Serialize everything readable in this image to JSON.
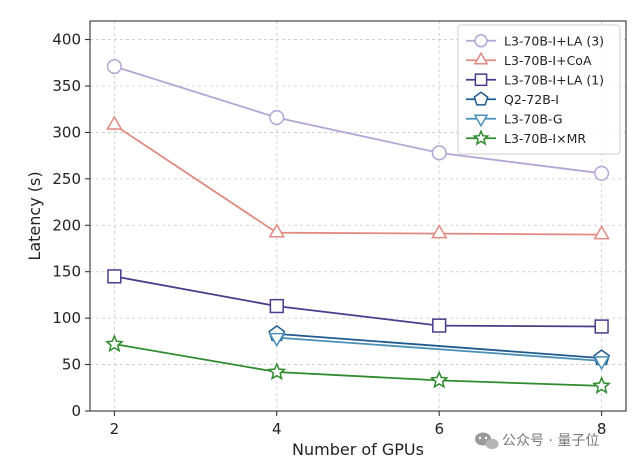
{
  "chart_data": {
    "type": "line",
    "xlabel": "Number of GPUs",
    "ylabel": "Latency (s)",
    "xlim": [
      1.7,
      8.3
    ],
    "ylim": [
      0,
      420
    ],
    "x_ticks": [
      2,
      4,
      6,
      8
    ],
    "y_ticks": [
      0,
      50,
      100,
      150,
      200,
      250,
      300,
      350,
      400
    ],
    "grid": true,
    "legend_position": "top-right",
    "series": [
      {
        "name": "L3-70B-I+LA (3)",
        "color": "#b3a6d4",
        "marker": "circle",
        "x": [
          2,
          4,
          6,
          8
        ],
        "values": [
          371,
          316,
          278,
          256
        ]
      },
      {
        "name": "L3-70B-I+CoA",
        "color": "#e08a82",
        "marker": "triangle-up",
        "x": [
          2,
          4,
          6,
          8
        ],
        "values": [
          308,
          192,
          191,
          190
        ]
      },
      {
        "name": "L3-70B-I+LA (1)",
        "color": "#483d8b",
        "marker": "square",
        "x": [
          2,
          4,
          6,
          8
        ],
        "values": [
          145,
          113,
          92,
          91
        ]
      },
      {
        "name": "Q2-72B-I",
        "color": "#1f5b8f",
        "marker": "pentagon",
        "x": [
          4,
          8
        ],
        "values": [
          83,
          57
        ]
      },
      {
        "name": "L3-70B-G",
        "color": "#4a90b8",
        "marker": "triangle-down",
        "x": [
          4,
          8
        ],
        "values": [
          79,
          54
        ]
      },
      {
        "name": "L3-70B-I×MR",
        "color": "#2e8b2e",
        "marker": "star",
        "x": [
          2,
          4,
          6,
          8
        ],
        "values": [
          72,
          42,
          33,
          27
        ]
      }
    ]
  },
  "watermark": {
    "text": "公众号 · 量子位",
    "icon": "wechat-icon"
  }
}
